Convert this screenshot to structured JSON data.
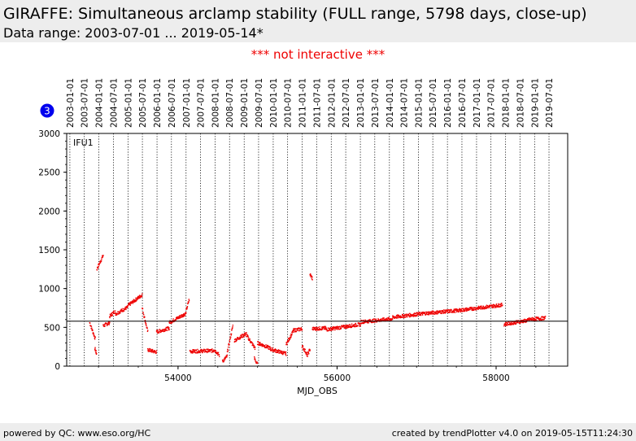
{
  "header": {
    "title": "GIRAFFE: Simultaneous arclamp stability (FULL range, 5798 days, close-up)",
    "subtitle": "Data range: 2003-07-01 ... 2019-05-14*"
  },
  "notice": "*** not interactive ***",
  "badge": "3",
  "footer": {
    "left": "powered by QC: www.eso.org/HC",
    "right": "created by trendPlotter v4.0 on 2019-05-15T11:24:30"
  },
  "colors": {
    "data": "#ee0000",
    "badge": "#0000ee",
    "header_bg": "#ededed"
  },
  "chart_data": {
    "type": "scatter",
    "xlabel": "MJD_OBS",
    "ylabel": "",
    "panel_label": "IFU1",
    "xlim": [
      52600,
      58900
    ],
    "ylim": [
      0,
      3000
    ],
    "x_ticks": [
      54000,
      56000,
      58000
    ],
    "y_ticks": [
      0,
      500,
      1000,
      1500,
      2000,
      2500,
      3000
    ],
    "reference_line": 580,
    "grid": "vertical dotted lines at date ticks",
    "date_ticks": [
      {
        "label": "2003-01-01",
        "mjd": 52640
      },
      {
        "label": "2003-07-01",
        "mjd": 52821
      },
      {
        "label": "2004-01-01",
        "mjd": 53005
      },
      {
        "label": "2004-07-01",
        "mjd": 53187
      },
      {
        "label": "2005-01-01",
        "mjd": 53371
      },
      {
        "label": "2005-07-01",
        "mjd": 53552
      },
      {
        "label": "2006-01-01",
        "mjd": 53736
      },
      {
        "label": "2006-07-01",
        "mjd": 53917
      },
      {
        "label": "2007-01-01",
        "mjd": 54101
      },
      {
        "label": "2007-07-01",
        "mjd": 54282
      },
      {
        "label": "2008-01-01",
        "mjd": 54466
      },
      {
        "label": "2008-07-01",
        "mjd": 54648
      },
      {
        "label": "2009-01-01",
        "mjd": 54832
      },
      {
        "label": "2009-07-01",
        "mjd": 55013
      },
      {
        "label": "2010-01-01",
        "mjd": 55197
      },
      {
        "label": "2010-07-01",
        "mjd": 55378
      },
      {
        "label": "2011-01-01",
        "mjd": 55562
      },
      {
        "label": "2011-07-01",
        "mjd": 55743
      },
      {
        "label": "2012-01-01",
        "mjd": 55927
      },
      {
        "label": "2012-07-01",
        "mjd": 56109
      },
      {
        "label": "2013-01-01",
        "mjd": 56293
      },
      {
        "label": "2013-07-01",
        "mjd": 56474
      },
      {
        "label": "2014-01-01",
        "mjd": 56658
      },
      {
        "label": "2014-07-01",
        "mjd": 56839
      },
      {
        "label": "2015-01-01",
        "mjd": 57023
      },
      {
        "label": "2015-07-01",
        "mjd": 57204
      },
      {
        "label": "2016-01-01",
        "mjd": 57388
      },
      {
        "label": "2016-07-01",
        "mjd": 57570
      },
      {
        "label": "2017-01-01",
        "mjd": 57754
      },
      {
        "label": "2017-07-01",
        "mjd": 57935
      },
      {
        "label": "2018-01-01",
        "mjd": 58119
      },
      {
        "label": "2018-07-01",
        "mjd": 58300
      },
      {
        "label": "2019-01-01",
        "mjd": 58484
      },
      {
        "label": "2019-07-01",
        "mjd": 58665
      }
    ],
    "series": [
      {
        "segments": [
          {
            "x0": 52890,
            "x1": 52960,
            "y0": 560,
            "y1": 350
          },
          {
            "x0": 52955,
            "x1": 52975,
            "y0": 230,
            "y1": 160
          },
          {
            "x0": 52980,
            "x1": 53060,
            "y0": 1250,
            "y1": 1430
          },
          {
            "x0": 53060,
            "x1": 53140,
            "y0": 520,
            "y1": 560
          },
          {
            "x0": 53140,
            "x1": 53210,
            "y0": 640,
            "y1": 710
          },
          {
            "x0": 53210,
            "x1": 53370,
            "y0": 670,
            "y1": 760
          },
          {
            "x0": 53370,
            "x1": 53550,
            "y0": 780,
            "y1": 920
          },
          {
            "x0": 53550,
            "x1": 53620,
            "y0": 750,
            "y1": 440
          },
          {
            "x0": 53620,
            "x1": 53730,
            "y0": 210,
            "y1": 180
          },
          {
            "x0": 53730,
            "x1": 53890,
            "y0": 440,
            "y1": 490
          },
          {
            "x0": 53890,
            "x1": 54100,
            "y0": 560,
            "y1": 680
          },
          {
            "x0": 54100,
            "x1": 54140,
            "y0": 700,
            "y1": 860
          },
          {
            "x0": 54150,
            "x1": 54450,
            "y0": 190,
            "y1": 200
          },
          {
            "x0": 54450,
            "x1": 54520,
            "y0": 220,
            "y1": 140
          },
          {
            "x0": 54560,
            "x1": 54620,
            "y0": 60,
            "y1": 130
          },
          {
            "x0": 54620,
            "x1": 54690,
            "y0": 180,
            "y1": 520
          },
          {
            "x0": 54710,
            "x1": 54860,
            "y0": 330,
            "y1": 420
          },
          {
            "x0": 54860,
            "x1": 54970,
            "y0": 400,
            "y1": 230
          },
          {
            "x0": 54960,
            "x1": 55000,
            "y0": 100,
            "y1": 20
          },
          {
            "x0": 55000,
            "x1": 55160,
            "y0": 300,
            "y1": 230
          },
          {
            "x0": 55160,
            "x1": 55360,
            "y0": 220,
            "y1": 160
          },
          {
            "x0": 55360,
            "x1": 55450,
            "y0": 280,
            "y1": 450
          },
          {
            "x0": 55450,
            "x1": 55560,
            "y0": 460,
            "y1": 480
          },
          {
            "x0": 55560,
            "x1": 55620,
            "y0": 260,
            "y1": 160
          },
          {
            "x0": 55620,
            "x1": 55660,
            "y0": 120,
            "y1": 220
          },
          {
            "x0": 55660,
            "x1": 55690,
            "y0": 1180,
            "y1": 1130
          },
          {
            "x0": 55690,
            "x1": 55860,
            "y0": 480,
            "y1": 490
          },
          {
            "x0": 55860,
            "x1": 56300,
            "y0": 470,
            "y1": 540
          },
          {
            "x0": 56300,
            "x1": 56700,
            "y0": 570,
            "y1": 610
          },
          {
            "x0": 56700,
            "x1": 57100,
            "y0": 630,
            "y1": 680
          },
          {
            "x0": 57100,
            "x1": 57550,
            "y0": 680,
            "y1": 720
          },
          {
            "x0": 57550,
            "x1": 58080,
            "y0": 720,
            "y1": 790
          },
          {
            "x0": 58100,
            "x1": 58400,
            "y0": 540,
            "y1": 590
          },
          {
            "x0": 58400,
            "x1": 58620,
            "y0": 600,
            "y1": 620
          }
        ]
      }
    ]
  }
}
